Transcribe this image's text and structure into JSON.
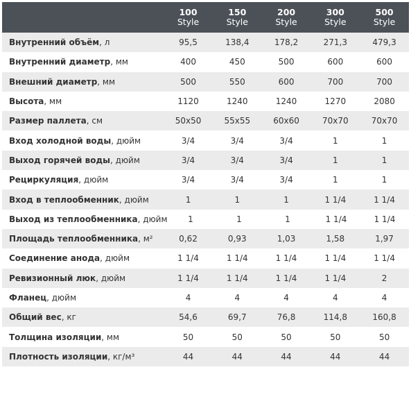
{
  "table": {
    "columns": [
      {
        "number": "100",
        "label": "Style"
      },
      {
        "number": "150",
        "label": "Style"
      },
      {
        "number": "200",
        "label": "Style"
      },
      {
        "number": "300",
        "label": "Style"
      },
      {
        "number": "500",
        "label": "Style"
      }
    ],
    "rows": [
      {
        "name": "Внутренний объём",
        "unit": ", л",
        "values": [
          "95,5",
          "138,4",
          "178,2",
          "271,3",
          "479,3"
        ]
      },
      {
        "name": "Внутренний диаметр",
        "unit": ", мм",
        "values": [
          "400",
          "450",
          "500",
          "600",
          "600"
        ]
      },
      {
        "name": "Внешний диаметр",
        "unit": ", мм",
        "values": [
          "500",
          "550",
          "600",
          "700",
          "700"
        ]
      },
      {
        "name": "Высота",
        "unit": ", мм",
        "values": [
          "1120",
          "1240",
          "1240",
          "1270",
          "2080"
        ]
      },
      {
        "name": "Размер паллета",
        "unit": ", см",
        "values": [
          "50x50",
          "55x55",
          "60x60",
          "70x70",
          "70x70"
        ]
      },
      {
        "name": "Вход холодной воды",
        "unit": ", дюйм",
        "values": [
          "3/4",
          "3/4",
          "3/4",
          "1",
          "1"
        ]
      },
      {
        "name": "Выход горячей воды",
        "unit": ", дюйм",
        "values": [
          "3/4",
          "3/4",
          "3/4",
          "1",
          "1"
        ]
      },
      {
        "name": "Рециркуляция",
        "unit": ", дюйм",
        "values": [
          "3/4",
          "3/4",
          "3/4",
          "1",
          "1"
        ]
      },
      {
        "name": "Вход в теплообменник",
        "unit": ", дюйм",
        "values": [
          "1",
          "1",
          "1",
          "1 1/4",
          "1 1/4"
        ]
      },
      {
        "name": "Выход из теплообменника",
        "unit": ", дюйм",
        "values": [
          "1",
          "1",
          "1",
          "1 1/4",
          "1 1/4"
        ]
      },
      {
        "name": "Площадь теплообменника",
        "unit": ", м²",
        "values": [
          "0,62",
          "0,93",
          "1,03",
          "1,58",
          "1,97"
        ]
      },
      {
        "name": "Соединение анода",
        "unit": ", дюйм",
        "values": [
          "1 1/4",
          "1 1/4",
          "1 1/4",
          "1 1/4",
          "1 1/4"
        ]
      },
      {
        "name": "Ревизионный люк",
        "unit": ", дюйм",
        "values": [
          "1 1/4",
          "1 1/4",
          "1 1/4",
          "1 1/4",
          "2"
        ]
      },
      {
        "name": "Фланец",
        "unit": ", дюйм",
        "values": [
          "4",
          "4",
          "4",
          "4",
          "4"
        ]
      },
      {
        "name": "Общий вес",
        "unit": ", кг",
        "values": [
          "54,6",
          "69,7",
          "76,8",
          "114,8",
          "160,8"
        ]
      },
      {
        "name": "Толщина изоляции",
        "unit": ", мм",
        "values": [
          "50",
          "50",
          "50",
          "50",
          "50"
        ]
      },
      {
        "name": "Плотность изоляции",
        "unit": ", кг/м³",
        "values": [
          "44",
          "44",
          "44",
          "44",
          "44"
        ]
      }
    ]
  }
}
